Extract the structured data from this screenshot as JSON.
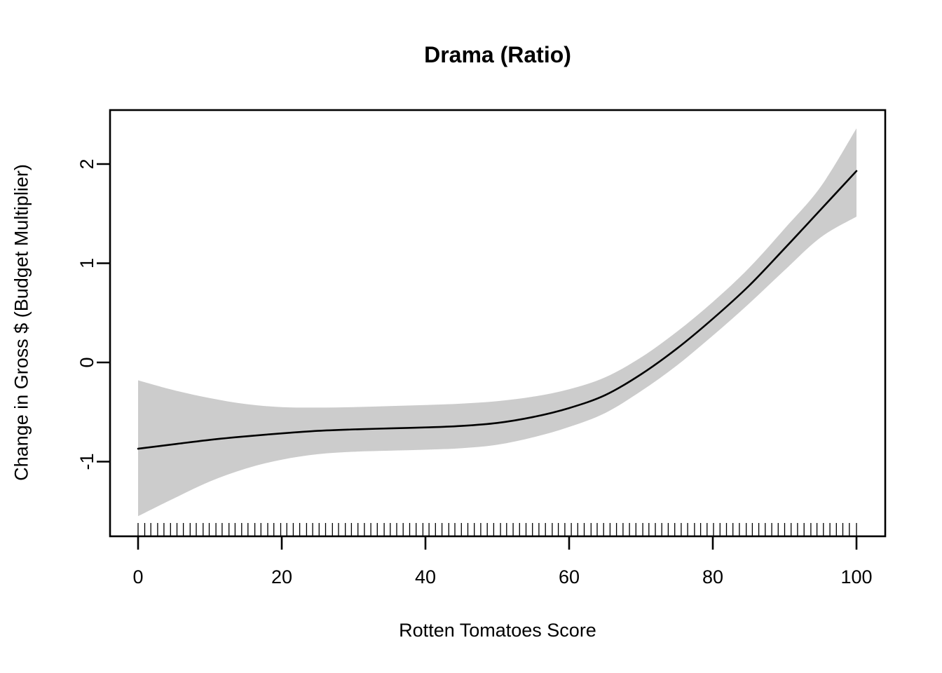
{
  "title": "Drama (Ratio)",
  "x_axis": {
    "label": "Rotten Tomatoes Score",
    "ticks": [
      0,
      20,
      40,
      60,
      80,
      100
    ]
  },
  "y_axis": {
    "label": "Change in Gross $ (Budget Multiplier)",
    "ticks": [
      -1,
      0,
      1,
      2
    ]
  },
  "colors": {
    "band": "#cccccc",
    "line": "#000000",
    "frame": "#000000",
    "background": "#ffffff",
    "text": "#000000"
  },
  "chart_data": {
    "type": "line",
    "title": "Drama (Ratio)",
    "xlabel": "Rotten Tomatoes Score",
    "ylabel": "Change in Gross $ (Budget Multiplier)",
    "xlim": [
      -3.9,
      104.0
    ],
    "ylim": [
      -1.75,
      2.55
    ],
    "grid": false,
    "legend": false,
    "x": [
      0,
      5,
      10,
      15,
      20,
      25,
      30,
      35,
      40,
      45,
      50,
      55,
      60,
      65,
      70,
      75,
      80,
      85,
      90,
      95,
      100
    ],
    "series": [
      {
        "name": "smooth-fit",
        "values": [
          -0.87,
          -0.825,
          -0.78,
          -0.745,
          -0.715,
          -0.69,
          -0.675,
          -0.665,
          -0.655,
          -0.64,
          -0.61,
          -0.55,
          -0.46,
          -0.33,
          -0.12,
          0.14,
          0.44,
          0.77,
          1.15,
          1.54,
          1.93
        ]
      },
      {
        "name": "ci-upper",
        "values": [
          -0.18,
          -0.28,
          -0.36,
          -0.42,
          -0.45,
          -0.455,
          -0.45,
          -0.44,
          -0.43,
          -0.415,
          -0.39,
          -0.345,
          -0.27,
          -0.15,
          0.05,
          0.31,
          0.61,
          0.95,
          1.35,
          1.77,
          2.36
        ]
      },
      {
        "name": "ci-lower",
        "values": [
          -1.55,
          -1.37,
          -1.2,
          -1.07,
          -0.98,
          -0.925,
          -0.9,
          -0.89,
          -0.88,
          -0.865,
          -0.83,
          -0.755,
          -0.65,
          -0.51,
          -0.29,
          -0.03,
          0.27,
          0.59,
          0.93,
          1.26,
          1.47
        ]
      }
    ],
    "rug_x": [
      0,
      0.93,
      1.78,
      2.72,
      3.6,
      4.52,
      5.41,
      6.3,
      7.25,
      8.1,
      9.05,
      9.9,
      10.84,
      11.7,
      12.65,
      13.5,
      14.42,
      15.3,
      16.25,
      17.1,
      18.05,
      18.9,
      19.85,
      20.7,
      21.6,
      22.5,
      23.45,
      24.3,
      25.2,
      26.1,
      27.05,
      27.9,
      28.85,
      29.7,
      30.6,
      31.5,
      32.4,
      33.3,
      34.25,
      35.1,
      36.0,
      36.9,
      37.8,
      38.7,
      39.65,
      40.5,
      41.4,
      42.3,
      43.25,
      44.1,
      45.0,
      45.9,
      46.8,
      47.7,
      48.6,
      49.5,
      50.45,
      51.3,
      52.2,
      53.1,
      54.0,
      54.9,
      55.8,
      56.7,
      57.65,
      58.5,
      59.4,
      60.3,
      61.2,
      62.1,
      63.05,
      63.9,
      64.8,
      65.7,
      66.6,
      67.5,
      68.4,
      69.3,
      70.25,
      71.1,
      72.0,
      72.9,
      73.8,
      74.7,
      75.6,
      76.5,
      77.45,
      78.3,
      79.2,
      80.1,
      81.0,
      81.9,
      82.8,
      83.7,
      84.65,
      85.5,
      86.4,
      87.3,
      88.2,
      89.1,
      90.0,
      90.9,
      91.8,
      92.7,
      93.65,
      94.5,
      95.4,
      96.3,
      97.2,
      98.1,
      99.0,
      100
    ]
  }
}
